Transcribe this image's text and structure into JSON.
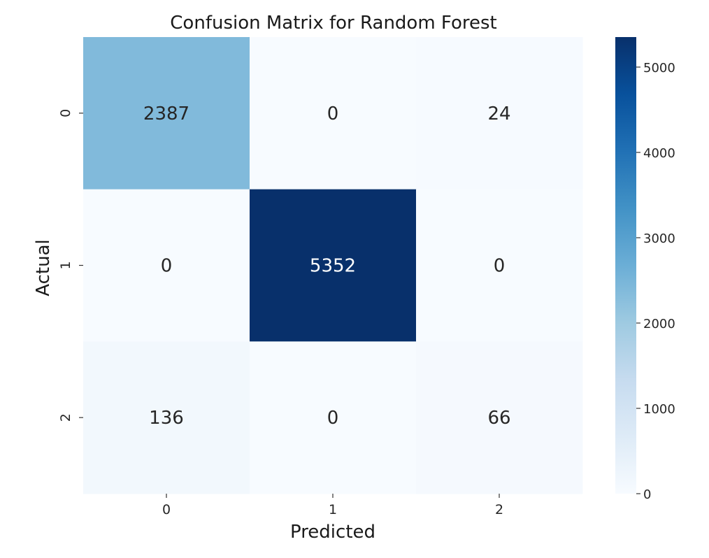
{
  "chart_data": {
    "type": "heatmap",
    "title": "Confusion Matrix for Random Forest",
    "xlabel": "Predicted",
    "ylabel": "Actual",
    "x_categories": [
      "0",
      "1",
      "2"
    ],
    "y_categories": [
      "0",
      "1",
      "2"
    ],
    "values": [
      [
        2387,
        0,
        24
      ],
      [
        0,
        5352,
        0
      ],
      [
        136,
        0,
        66
      ]
    ],
    "colormap": "Blues",
    "colorbar": {
      "range": [
        0,
        5352
      ],
      "ticks": [
        0,
        1000,
        2000,
        3000,
        4000,
        5000
      ],
      "tick_labels": [
        "0",
        "1000",
        "2000",
        "3000",
        "4000",
        "5000"
      ]
    },
    "colors": {
      "low": "#f7fbff",
      "high": "#08306b"
    }
  }
}
